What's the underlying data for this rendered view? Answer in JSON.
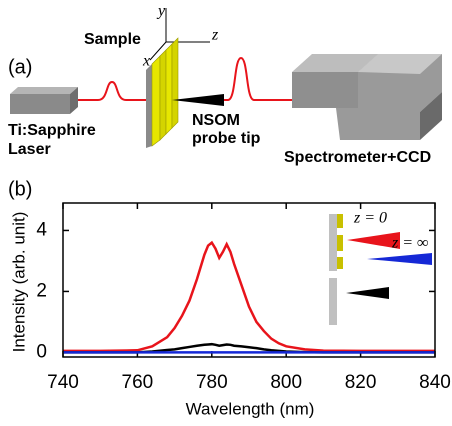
{
  "panel_a": {
    "label": "(a)",
    "sample": "Sample",
    "axis_y": "y",
    "axis_z": "z",
    "axis_x": "x",
    "laser": [
      "Ti:Sapphire",
      "Laser"
    ],
    "probe": [
      "NSOM",
      "probe tip"
    ],
    "spectrometer": "Spectrometer+CCD"
  },
  "chart_data": {
    "type": "line",
    "panel_label": "(b)",
    "x_label": "Wavelength (nm)",
    "y_label": "Intensity (arb. unit)",
    "xlim": [
      740,
      840
    ],
    "ylim": [
      -0.15,
      4.9
    ],
    "xticks": [
      740,
      760,
      780,
      800,
      820,
      840
    ],
    "yticks": [
      0,
      2,
      4
    ],
    "x": [
      740,
      750,
      760,
      764,
      768,
      770,
      772,
      774,
      776,
      778,
      779,
      780,
      781,
      782,
      783,
      784,
      785,
      786,
      788,
      790,
      792,
      794,
      796,
      798,
      800,
      805,
      810,
      820,
      830,
      840
    ],
    "series": [
      {
        "name": "z = 0",
        "color": "#e8141b",
        "values": [
          0.05,
          0.05,
          0.07,
          0.2,
          0.5,
          0.8,
          1.2,
          1.7,
          2.4,
          3.2,
          3.5,
          3.6,
          3.4,
          3.1,
          3.3,
          3.55,
          3.3,
          2.9,
          2.2,
          1.5,
          1.0,
          0.7,
          0.45,
          0.3,
          0.2,
          0.1,
          0.06,
          0.05,
          0.05,
          0.05
        ]
      },
      {
        "color": "#000000",
        "values": [
          0,
          0,
          0,
          0.03,
          0.08,
          0.1,
          0.14,
          0.18,
          0.22,
          0.25,
          0.26,
          0.27,
          0.25,
          0.22,
          0.24,
          0.26,
          0.25,
          0.22,
          0.2,
          0.17,
          0.14,
          0.1,
          0.07,
          0.05,
          0.03,
          0.01,
          0,
          0,
          0,
          0
        ]
      },
      {
        "name": "z = ∞",
        "color": "#1528d6",
        "values": [
          0,
          0,
          0,
          0,
          0,
          0,
          0,
          0,
          0,
          0,
          0,
          0,
          0,
          0,
          0,
          0,
          0,
          0,
          0,
          0,
          0,
          0,
          0,
          0,
          0,
          0,
          0,
          0,
          0,
          0
        ]
      }
    ]
  }
}
